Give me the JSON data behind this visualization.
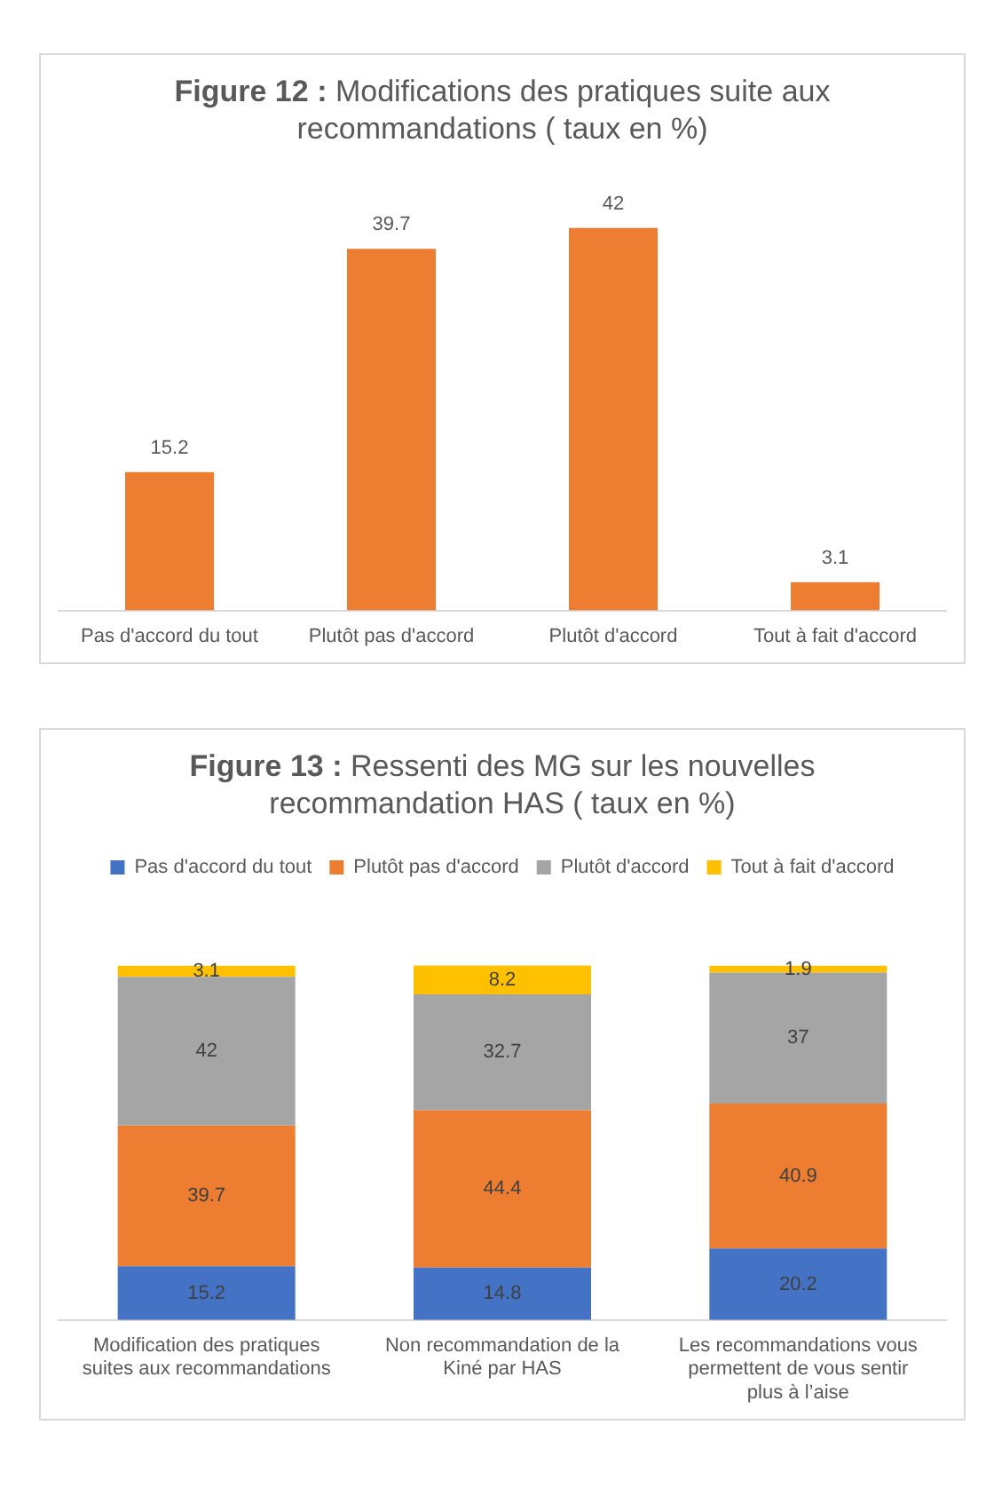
{
  "chart_data": [
    {
      "type": "bar",
      "title": "Figure 12 : Modifications des pratiques suite aux recommandations ( taux en %)",
      "categories": [
        "Pas d'accord du tout",
        "Plutôt pas d'accord",
        "Plutôt d'accord",
        "Tout à fait d'accord"
      ],
      "values": [
        15.2,
        39.7,
        42,
        3.1
      ],
      "color": "#ed7d31",
      "data_labels": true
    },
    {
      "type": "bar",
      "title": "Figure 13 : Ressenti des MG sur les nouvelles recommandation HAS ( taux en %)",
      "categories": [
        "Modification des pratiques suites aux recommandations",
        "Non recommandation de la Kiné par HAS",
        "Les recommandations vous permettent de vous sentir plus à l’aise"
      ],
      "stacked": true,
      "data_labels": true,
      "legend": "top",
      "series": [
        {
          "name": "Pas d'accord du tout",
          "color": "#4472c4",
          "values": [
            15.2,
            14.8,
            20.2
          ]
        },
        {
          "name": "Plutôt pas d'accord",
          "color": "#ed7d31",
          "values": [
            39.7,
            44.4,
            40.9
          ]
        },
        {
          "name": "Plutôt d'accord",
          "color": "#a5a5a5",
          "values": [
            42,
            32.7,
            37
          ]
        },
        {
          "name": "Tout à fait d'accord",
          "color": "#ffc000",
          "values": [
            3.1,
            8.2,
            1.9
          ]
        }
      ]
    }
  ]
}
